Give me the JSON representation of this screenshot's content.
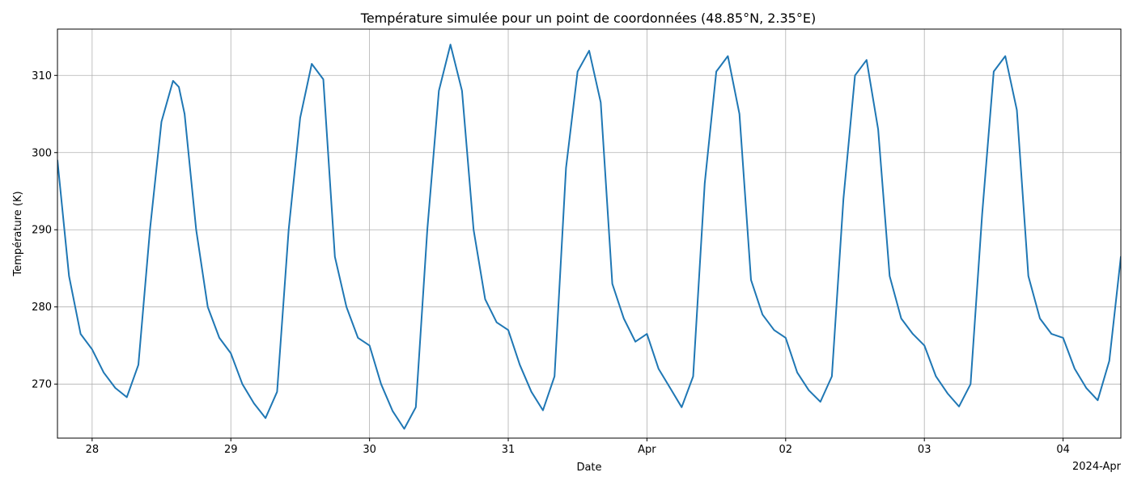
{
  "chart_data": {
    "type": "line",
    "title": "Température simulée pour un point de coordonnées (48.85°N, 2.35°E)",
    "xlabel": "Date",
    "ylabel": "Température (K)",
    "x_offset_label": "2024-Apr",
    "x_range": [
      "2024-03-27T18:00",
      "2024-04-04T10:00"
    ],
    "xlim": [
      "2024-03-27T18:00",
      "2024-04-04T10:00"
    ],
    "ylim": [
      263,
      316
    ],
    "grid": true,
    "line_color": "#1f77b4",
    "x_ticks": [
      {
        "date": "2024-03-28T00:00",
        "label": "28"
      },
      {
        "date": "2024-03-29T00:00",
        "label": "29"
      },
      {
        "date": "2024-03-30T00:00",
        "label": "30"
      },
      {
        "date": "2024-03-31T00:00",
        "label": "31"
      },
      {
        "date": "2024-04-01T00:00",
        "label": "Apr"
      },
      {
        "date": "2024-04-02T00:00",
        "label": "02"
      },
      {
        "date": "2024-04-03T00:00",
        "label": "03"
      },
      {
        "date": "2024-04-04T00:00",
        "label": "04"
      }
    ],
    "y_ticks": [
      270,
      280,
      290,
      300,
      310
    ],
    "series": [
      {
        "x": [
          "2024-03-27T18:00",
          "2024-03-27T20:00",
          "2024-03-27T22:00",
          "2024-03-28T00:00",
          "2024-03-28T02:00",
          "2024-03-28T04:00",
          "2024-03-28T06:00",
          "2024-03-28T08:00",
          "2024-03-28T10:00",
          "2024-03-28T12:00",
          "2024-03-28T14:00",
          "2024-03-28T15:00",
          "2024-03-28T16:00",
          "2024-03-28T18:00",
          "2024-03-28T20:00",
          "2024-03-28T22:00",
          "2024-03-29T00:00",
          "2024-03-29T02:00",
          "2024-03-29T04:00",
          "2024-03-29T06:00",
          "2024-03-29T08:00",
          "2024-03-29T10:00",
          "2024-03-29T12:00",
          "2024-03-29T14:00",
          "2024-03-29T16:00",
          "2024-03-29T18:00",
          "2024-03-29T20:00",
          "2024-03-29T22:00",
          "2024-03-30T00:00",
          "2024-03-30T02:00",
          "2024-03-30T04:00",
          "2024-03-30T06:00",
          "2024-03-30T08:00",
          "2024-03-30T10:00",
          "2024-03-30T12:00",
          "2024-03-30T14:00",
          "2024-03-30T16:00",
          "2024-03-30T18:00",
          "2024-03-30T20:00",
          "2024-03-30T22:00",
          "2024-03-31T00:00",
          "2024-03-31T02:00",
          "2024-03-31T04:00",
          "2024-03-31T06:00",
          "2024-03-31T08:00",
          "2024-03-31T10:00",
          "2024-03-31T12:00",
          "2024-03-31T14:00",
          "2024-03-31T16:00",
          "2024-03-31T18:00",
          "2024-03-31T20:00",
          "2024-03-31T22:00",
          "2024-04-01T00:00",
          "2024-04-01T02:00",
          "2024-04-01T04:00",
          "2024-04-01T06:00",
          "2024-04-01T08:00",
          "2024-04-01T10:00",
          "2024-04-01T12:00",
          "2024-04-01T14:00",
          "2024-04-01T16:00",
          "2024-04-01T18:00",
          "2024-04-01T20:00",
          "2024-04-01T22:00",
          "2024-04-02T00:00",
          "2024-04-02T02:00",
          "2024-04-02T04:00",
          "2024-04-02T06:00",
          "2024-04-02T08:00",
          "2024-04-02T10:00",
          "2024-04-02T12:00",
          "2024-04-02T14:00",
          "2024-04-02T16:00",
          "2024-04-02T18:00",
          "2024-04-02T20:00",
          "2024-04-02T22:00",
          "2024-04-03T00:00",
          "2024-04-03T02:00",
          "2024-04-03T04:00",
          "2024-04-03T06:00",
          "2024-04-03T08:00",
          "2024-04-03T10:00",
          "2024-04-03T12:00",
          "2024-04-03T14:00",
          "2024-04-03T16:00",
          "2024-04-03T18:00",
          "2024-04-03T20:00",
          "2024-04-03T22:00",
          "2024-04-04T00:00",
          "2024-04-04T02:00",
          "2024-04-04T04:00",
          "2024-04-04T06:00",
          "2024-04-04T08:00",
          "2024-04-04T10:00"
        ],
        "y": [
          299,
          284,
          276.5,
          274.5,
          271.5,
          269.5,
          268.3,
          272.5,
          290,
          304,
          309.3,
          308.5,
          305,
          290,
          280,
          276,
          274,
          270,
          267.5,
          265.6,
          269,
          290,
          304.5,
          311.5,
          309.5,
          286.5,
          280,
          276,
          275,
          270,
          266.5,
          264.2,
          267,
          290,
          308,
          314,
          308,
          290,
          281,
          278,
          277,
          272.5,
          269,
          266.6,
          271,
          298,
          310.5,
          313.2,
          306.5,
          283,
          278.5,
          275.5,
          276.5,
          272,
          269.5,
          267,
          271,
          296,
          310.5,
          312.5,
          305,
          283.5,
          279,
          277,
          276,
          271.5,
          269.2,
          267.7,
          271,
          294,
          310,
          312,
          303,
          284,
          278.5,
          276.5,
          275,
          271,
          268.8,
          267.1,
          270,
          292,
          310.5,
          312.5,
          305.5,
          284,
          278.5,
          276.5,
          276,
          272,
          269.5,
          267.9,
          273,
          286.5
        ]
      }
    ]
  }
}
